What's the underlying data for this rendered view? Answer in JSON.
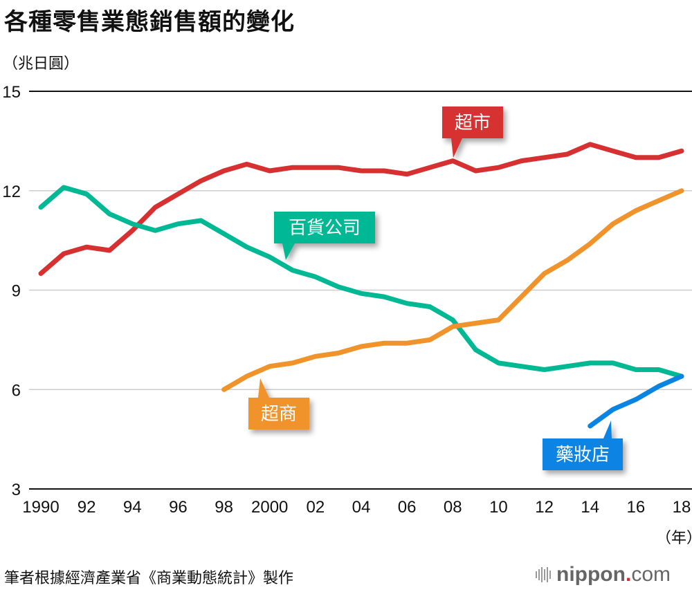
{
  "title": "各種零售業態銷售額的變化",
  "unit_label": "（兆日圓）",
  "x_unit_label": "（年）",
  "source": "筆者根據經濟產業省《商業動態統計》製作",
  "logo": {
    "name": "nippon",
    "dot": ".",
    "suffix": "com"
  },
  "chart_data": {
    "type": "line",
    "title": "各種零售業態銷售額的變化",
    "xlabel": "（年）",
    "ylabel": "（兆日圓）",
    "ylim": [
      3,
      15
    ],
    "yticks": [
      3,
      6,
      9,
      12,
      15
    ],
    "xlim": [
      1990,
      2018
    ],
    "xticks": [
      1990,
      1992,
      1994,
      1996,
      1998,
      2000,
      2002,
      2004,
      2006,
      2008,
      2010,
      2012,
      2014,
      2016,
      2018
    ],
    "xtick_labels": [
      "1990",
      "92",
      "94",
      "96",
      "98",
      "2000",
      "02",
      "04",
      "06",
      "08",
      "10",
      "12",
      "14",
      "16",
      "18"
    ],
    "grid": true,
    "series": [
      {
        "name": "超市",
        "color": "#d63031",
        "label_year": 2008,
        "x": [
          1990,
          1991,
          1992,
          1993,
          1994,
          1995,
          1996,
          1997,
          1998,
          1999,
          2000,
          2001,
          2002,
          2003,
          2004,
          2005,
          2006,
          2007,
          2008,
          2009,
          2010,
          2011,
          2012,
          2013,
          2014,
          2015,
          2016,
          2017,
          2018
        ],
        "values": [
          9.5,
          10.1,
          10.3,
          10.2,
          10.8,
          11.5,
          11.9,
          12.3,
          12.6,
          12.8,
          12.6,
          12.7,
          12.7,
          12.7,
          12.6,
          12.6,
          12.5,
          12.7,
          12.9,
          12.6,
          12.7,
          12.9,
          13.0,
          13.1,
          13.4,
          13.2,
          13.0,
          13.0,
          13.2
        ]
      },
      {
        "name": "百貨公司",
        "color": "#00b894",
        "label_year": 2000.7,
        "x": [
          1990,
          1991,
          1992,
          1993,
          1994,
          1995,
          1996,
          1997,
          1998,
          1999,
          2000,
          2001,
          2002,
          2003,
          2004,
          2005,
          2006,
          2007,
          2008,
          2009,
          2010,
          2011,
          2012,
          2013,
          2014,
          2015,
          2016,
          2017,
          2018
        ],
        "values": [
          11.5,
          12.1,
          11.9,
          11.3,
          11.0,
          10.8,
          11.0,
          11.1,
          10.7,
          10.3,
          10.0,
          9.6,
          9.4,
          9.1,
          8.9,
          8.8,
          8.6,
          8.5,
          8.1,
          7.2,
          6.8,
          6.7,
          6.6,
          6.7,
          6.8,
          6.8,
          6.6,
          6.6,
          6.4
        ]
      },
      {
        "name": "超商",
        "color": "#f0932b",
        "label_year": 1999.5,
        "x": [
          1998,
          1999,
          2000,
          2001,
          2002,
          2003,
          2004,
          2005,
          2006,
          2007,
          2008,
          2009,
          2010,
          2011,
          2012,
          2013,
          2014,
          2015,
          2016,
          2017,
          2018
        ],
        "values": [
          6.0,
          6.4,
          6.7,
          6.8,
          7.0,
          7.1,
          7.3,
          7.4,
          7.4,
          7.5,
          7.9,
          8.0,
          8.1,
          8.8,
          9.5,
          9.9,
          10.4,
          11.0,
          11.4,
          11.7,
          12.0
        ]
      },
      {
        "name": "藥妝店",
        "color": "#0984e3",
        "label_year": 2014.9,
        "x": [
          2014,
          2015,
          2016,
          2017,
          2018
        ],
        "values": [
          4.9,
          5.4,
          5.7,
          6.1,
          6.4
        ]
      }
    ]
  }
}
